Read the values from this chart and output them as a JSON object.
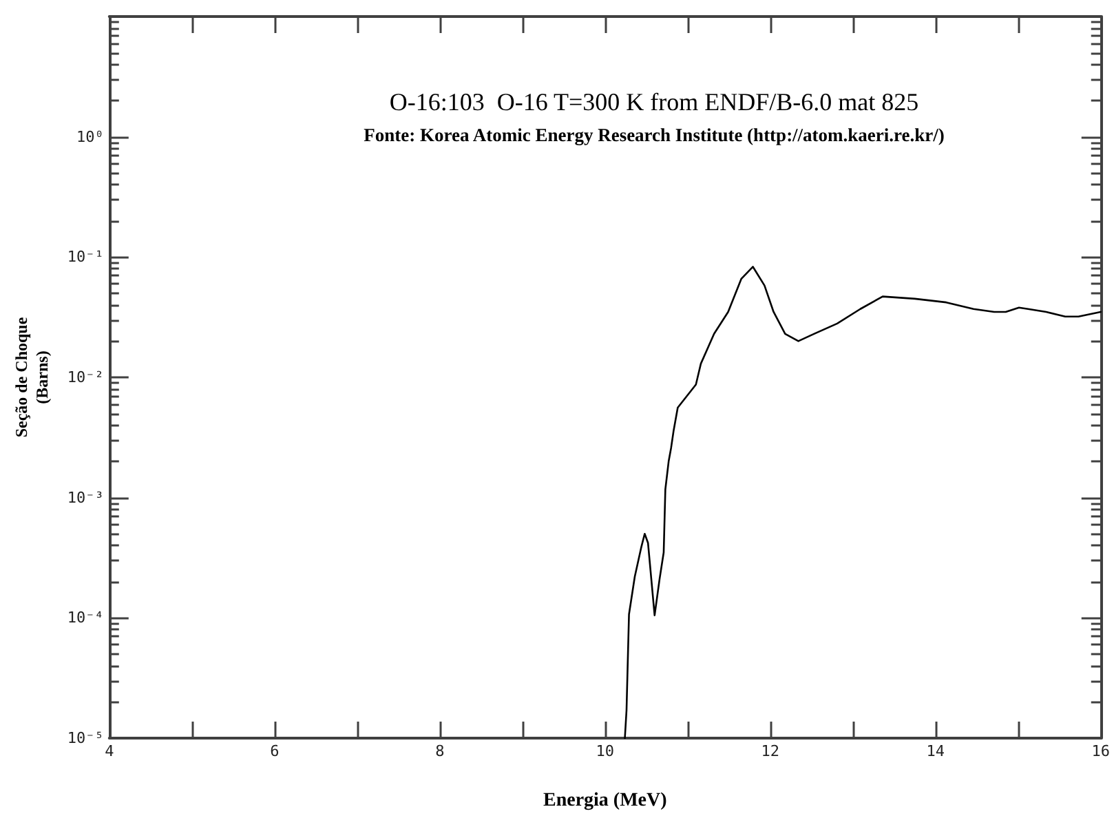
{
  "chart_data": {
    "type": "line",
    "title": "O-16:103  O-16 T=300 K from ENDF/B-6.0 mat 825",
    "annotations": [
      "Fonte: Korea Atomic Energy Research Institute (http://atom.kaeri.re.kr/)"
    ],
    "xlabel": "Energia (MeV)",
    "ylabel": "Seção de Choque\n(Barns)",
    "series": [
      {
        "color": "#000000",
        "x": [
          10.24,
          10.26,
          10.29,
          10.36,
          10.44,
          10.48,
          10.52,
          10.6,
          10.66,
          10.71,
          10.73,
          10.77,
          10.8,
          10.83,
          10.88,
          11.1,
          11.16,
          11.32,
          11.49,
          11.65,
          11.79,
          11.93,
          12.04,
          12.18,
          12.34,
          12.53,
          12.81,
          13.09,
          13.36,
          13.75,
          14.13,
          14.46,
          14.71,
          14.85,
          15.01,
          15.12,
          15.34,
          15.57,
          15.73,
          16.0
        ],
        "values": [
          1e-05,
          1.7e-05,
          0.000107,
          0.00022,
          0.00039,
          0.0005,
          0.00042,
          0.000105,
          0.00021,
          0.00035,
          0.00117,
          0.002,
          0.0026,
          0.0036,
          0.0056,
          0.0087,
          0.013,
          0.023,
          0.035,
          0.066,
          0.083,
          0.058,
          0.035,
          0.023,
          0.02,
          0.023,
          0.028,
          0.037,
          0.047,
          0.045,
          0.042,
          0.037,
          0.035,
          0.035,
          0.038,
          0.037,
          0.035,
          0.032,
          0.032,
          0.035
        ]
      }
    ],
    "log": "y",
    "xlim": [
      4,
      16
    ],
    "ylim": [
      1e-05,
      10
    ],
    "xticks": [
      4,
      {
        "value": 5,
        "label": null
      },
      6,
      {
        "value": 7,
        "label": null
      },
      8,
      {
        "value": 9,
        "label": null
      },
      10,
      {
        "value": 11,
        "label": null
      },
      12,
      {
        "value": 13,
        "label": null
      },
      14,
      {
        "value": 15,
        "label": null
      },
      16
    ],
    "yticks": [
      {
        "value": 1e-05,
        "label": "10⁻⁵"
      },
      {
        "value": 2e-05,
        "label": null
      },
      {
        "value": 3e-05,
        "label": null
      },
      {
        "value": 4e-05,
        "label": null
      },
      {
        "value": 5e-05,
        "label": null
      },
      {
        "value": 6e-05,
        "label": null
      },
      {
        "value": 7e-05,
        "label": null
      },
      {
        "value": 8e-05,
        "label": null
      },
      {
        "value": 9e-05,
        "label": null
      },
      {
        "value": 0.0001,
        "label": "10⁻⁴"
      },
      {
        "value": 0.0002,
        "label": null
      },
      {
        "value": 0.0003,
        "label": null
      },
      {
        "value": 0.0004,
        "label": null
      },
      {
        "value": 0.0005,
        "label": null
      },
      {
        "value": 0.0006,
        "label": null
      },
      {
        "value": 0.0007,
        "label": null
      },
      {
        "value": 0.0008,
        "label": null
      },
      {
        "value": 0.0009,
        "label": null
      },
      {
        "value": 0.001,
        "label": "10⁻³"
      },
      {
        "value": 0.002,
        "label": null
      },
      {
        "value": 0.003,
        "label": null
      },
      {
        "value": 0.004,
        "label": null
      },
      {
        "value": 0.005,
        "label": null
      },
      {
        "value": 0.006,
        "label": null
      },
      {
        "value": 0.007,
        "label": null
      },
      {
        "value": 0.008,
        "label": null
      },
      {
        "value": 0.009,
        "label": null
      },
      {
        "value": 0.01,
        "label": "10⁻²"
      },
      {
        "value": 0.02,
        "label": null
      },
      {
        "value": 0.03,
        "label": null
      },
      {
        "value": 0.04,
        "label": null
      },
      {
        "value": 0.05,
        "label": null
      },
      {
        "value": 0.06,
        "label": null
      },
      {
        "value": 0.07,
        "label": null
      },
      {
        "value": 0.08,
        "label": null
      },
      {
        "value": 0.09,
        "label": null
      },
      {
        "value": 0.1,
        "label": "10⁻¹"
      },
      {
        "value": 0.2,
        "label": null
      },
      {
        "value": 0.3,
        "label": null
      },
      {
        "value": 0.4,
        "label": null
      },
      {
        "value": 0.5,
        "label": null
      },
      {
        "value": 0.6,
        "label": null
      },
      {
        "value": 0.7,
        "label": null
      },
      {
        "value": 0.8,
        "label": null
      },
      {
        "value": 0.9,
        "label": null
      },
      {
        "value": 1,
        "label": "10⁰"
      },
      {
        "value": 2,
        "label": null
      },
      {
        "value": 3,
        "label": null
      },
      {
        "value": 4,
        "label": null
      },
      {
        "value": 5,
        "label": null
      },
      {
        "value": 6,
        "label": null
      },
      {
        "value": 7,
        "label": null
      },
      {
        "value": 8,
        "label": null
      },
      {
        "value": 9,
        "label": null
      },
      {
        "value": 10,
        "label": null
      }
    ],
    "grid": false,
    "marker": "none",
    "line_style": "solid"
  }
}
